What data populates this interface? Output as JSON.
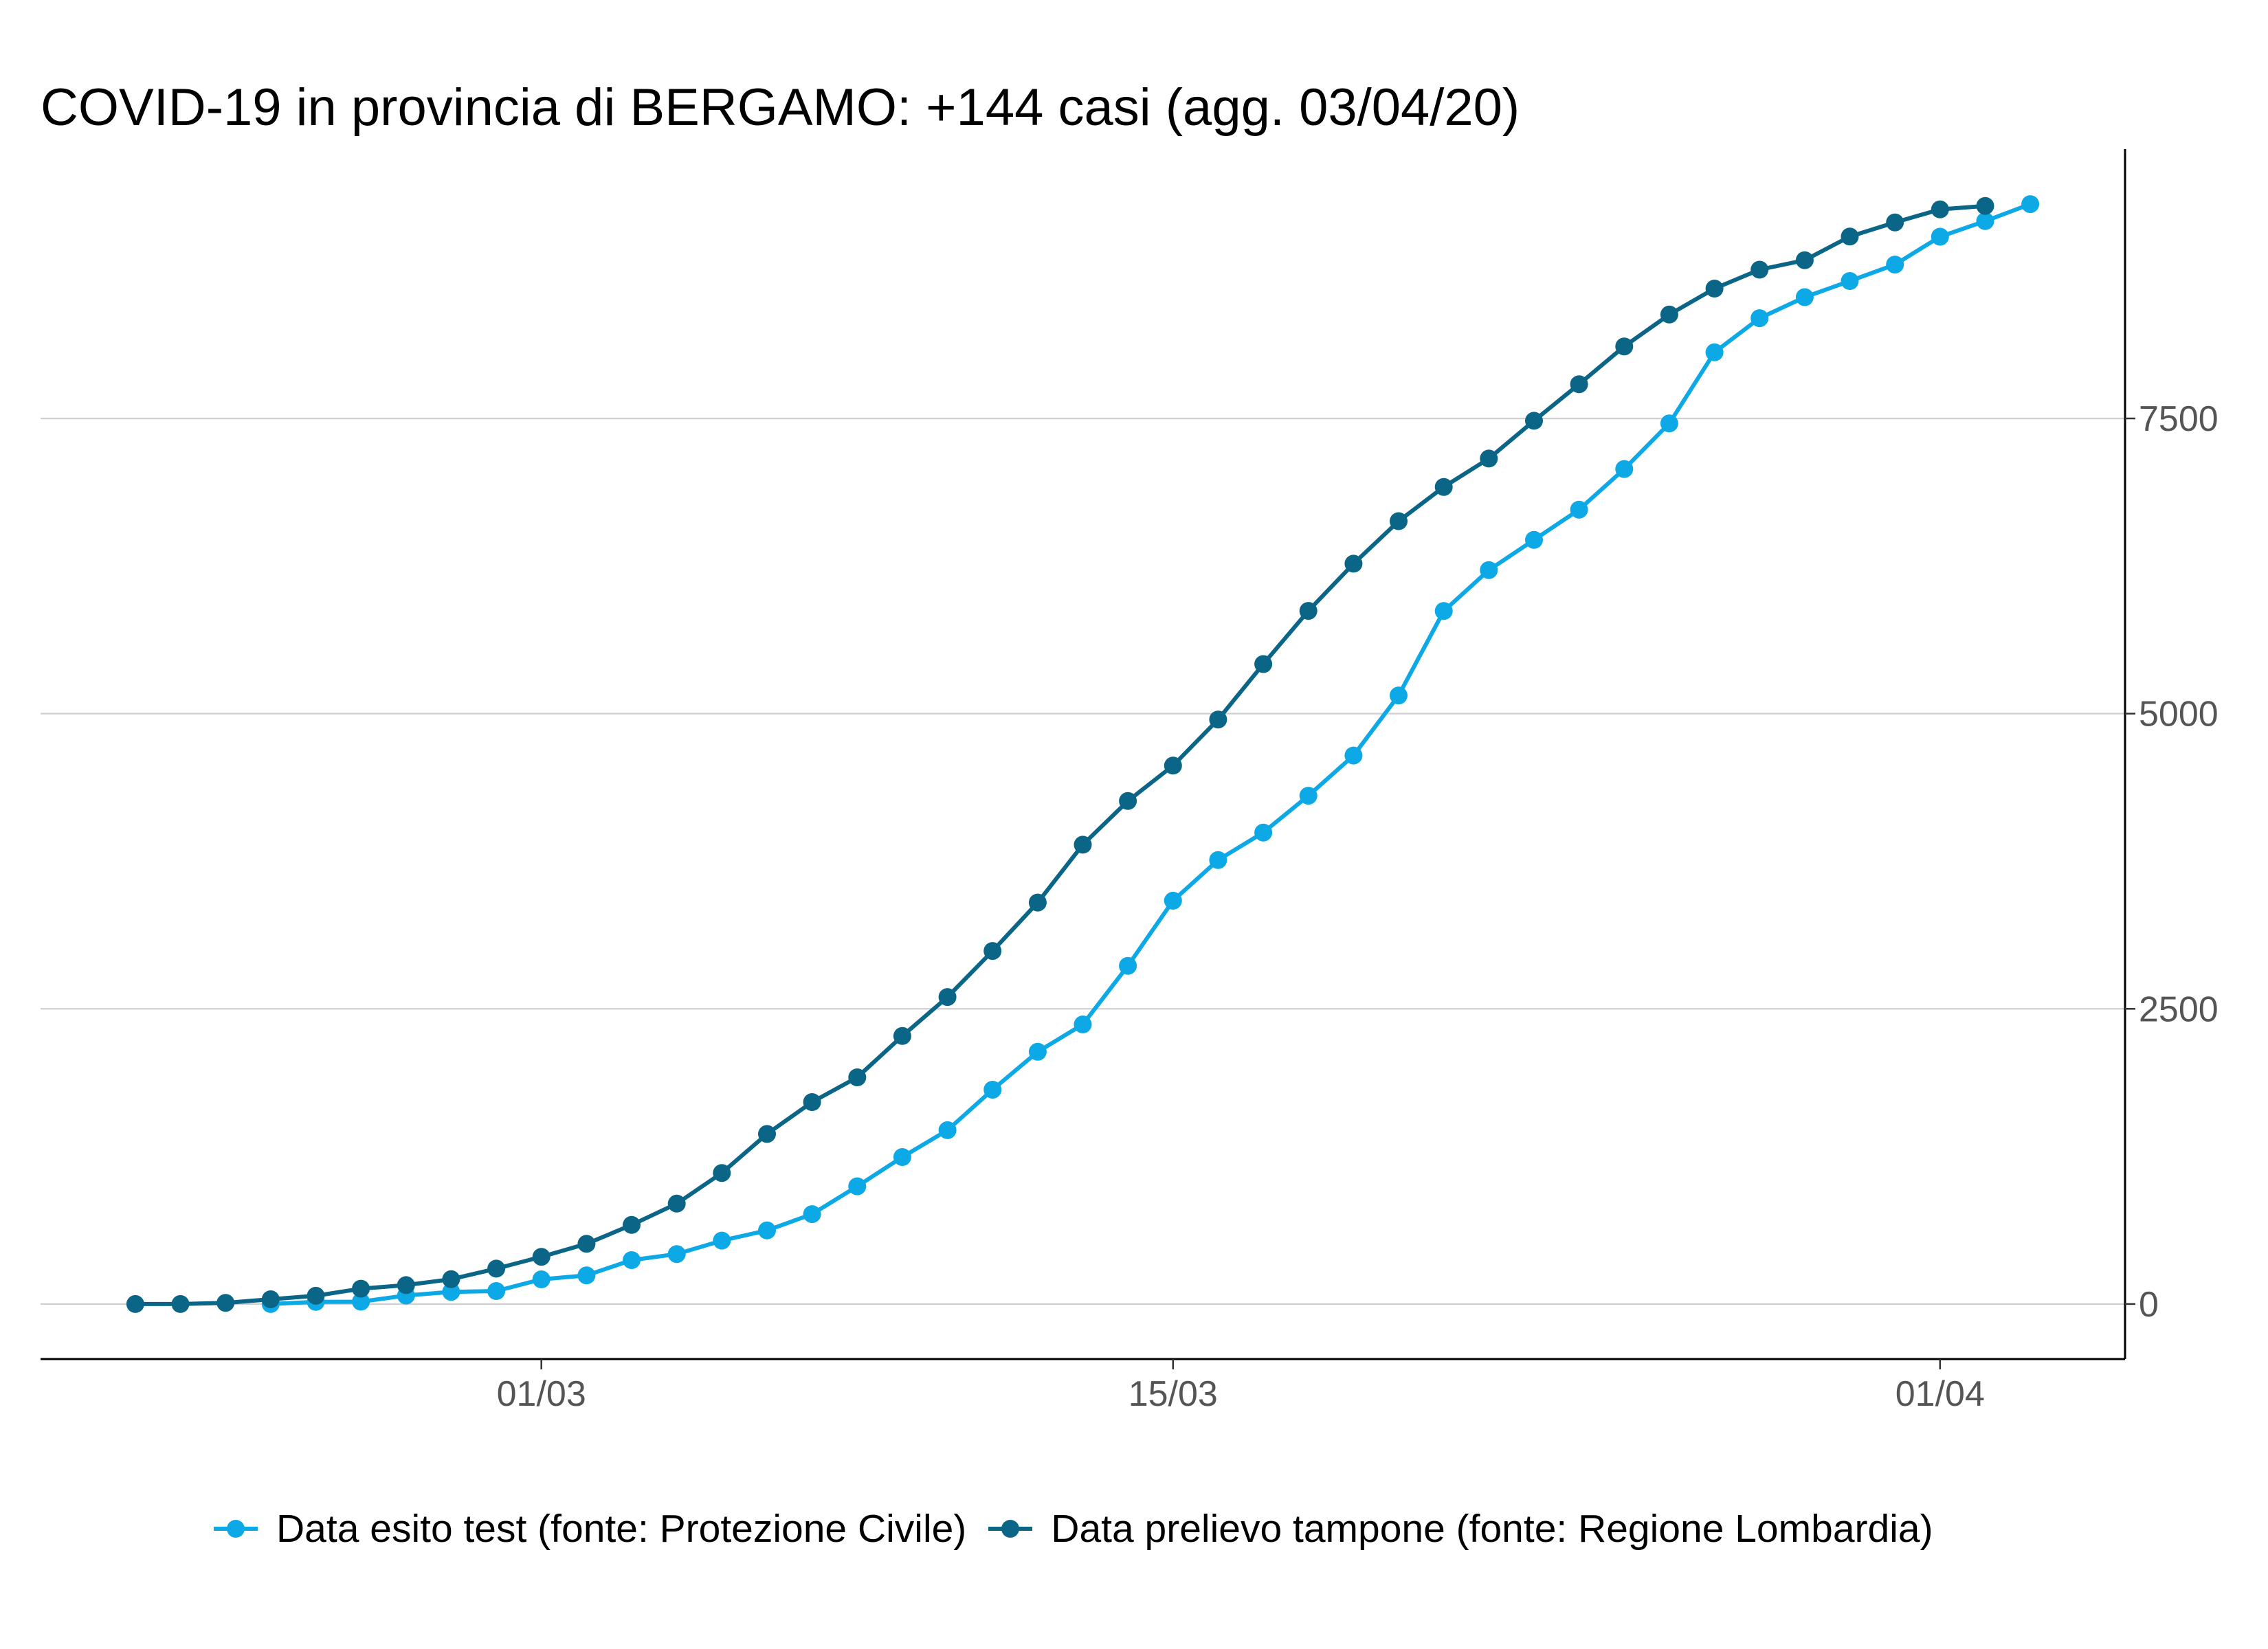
{
  "chart_data": {
    "type": "line",
    "title": "COVID-19 in provincia di BERGAMO: +144 casi (agg. 03/04/20)",
    "xlim": [
      "2020-02-18T21:36:00Z",
      "2020-04-05T02:24:00Z"
    ],
    "ylim": [
      -466,
      9781
    ],
    "x_ticks": [
      {
        "label": "01/03",
        "date": "2020-03-01"
      },
      {
        "label": "15/03",
        "date": "2020-03-15"
      },
      {
        "label": "01/04",
        "date": "2020-04-01"
      }
    ],
    "y_ticks": [
      0,
      2500,
      5000,
      7500
    ],
    "y_axis_position": "right",
    "grid": {
      "horizontal": true,
      "vertical": false
    },
    "legend_position": "bottom",
    "series": [
      {
        "name": "Data esito test (fonte: Protezione Civile)",
        "color": "#0DA9E6",
        "x": [
          "2020-02-24",
          "2020-02-25",
          "2020-02-26",
          "2020-02-27",
          "2020-02-28",
          "2020-02-29",
          "2020-03-01",
          "2020-03-02",
          "2020-03-03",
          "2020-03-04",
          "2020-03-05",
          "2020-03-06",
          "2020-03-07",
          "2020-03-08",
          "2020-03-09",
          "2020-03-10",
          "2020-03-11",
          "2020-03-12",
          "2020-03-13",
          "2020-03-14",
          "2020-03-15",
          "2020-03-16",
          "2020-03-17",
          "2020-03-18",
          "2020-03-19",
          "2020-03-20",
          "2020-03-21",
          "2020-03-22",
          "2020-03-23",
          "2020-03-24",
          "2020-03-25",
          "2020-03-26",
          "2020-03-27",
          "2020-03-28",
          "2020-03-29",
          "2020-03-30",
          "2020-03-31",
          "2020-04-01",
          "2020-04-02",
          "2020-04-03"
        ],
        "y": [
          0,
          18,
          20,
          72,
          103,
          110,
          209,
          243,
          372,
          423,
          537,
          623,
          761,
          997,
          1245,
          1472,
          1815,
          2136,
          2368,
          2864,
          3416,
          3760,
          3993,
          4305,
          4645,
          5154,
          5869,
          6216,
          6471,
          6728,
          7072,
          7458,
          8060,
          8349,
          8527,
          8664,
          8803,
          9039,
          9171,
          9315
        ]
      },
      {
        "name": "Data prelievo tampone (fonte: Regione Lombardia)",
        "color": "#0B6586",
        "x": [
          "2020-02-21",
          "2020-02-22",
          "2020-02-23",
          "2020-02-24",
          "2020-02-25",
          "2020-02-26",
          "2020-02-27",
          "2020-02-28",
          "2020-02-29",
          "2020-03-01",
          "2020-03-02",
          "2020-03-03",
          "2020-03-04",
          "2020-03-05",
          "2020-03-06",
          "2020-03-07",
          "2020-03-08",
          "2020-03-09",
          "2020-03-10",
          "2020-03-11",
          "2020-03-12",
          "2020-03-13",
          "2020-03-14",
          "2020-03-15",
          "2020-03-16",
          "2020-03-17",
          "2020-03-18",
          "2020-03-19",
          "2020-03-20",
          "2020-03-21",
          "2020-03-22",
          "2020-03-23",
          "2020-03-24",
          "2020-03-25",
          "2020-03-26",
          "2020-03-27",
          "2020-03-28",
          "2020-03-29",
          "2020-03-30",
          "2020-03-31",
          "2020-04-01",
          "2020-04-02"
        ],
        "y": [
          0,
          0,
          10,
          40,
          70,
          130,
          160,
          210,
          300,
          400,
          510,
          670,
          850,
          1110,
          1440,
          1710,
          1920,
          2270,
          2600,
          2990,
          3400,
          3890,
          4260,
          4560,
          4950,
          5420,
          5870,
          6270,
          6630,
          6920,
          7160,
          7480,
          7790,
          8110,
          8380,
          8600,
          8760,
          8840,
          9040,
          9160,
          9270,
          9300
        ]
      }
    ]
  }
}
